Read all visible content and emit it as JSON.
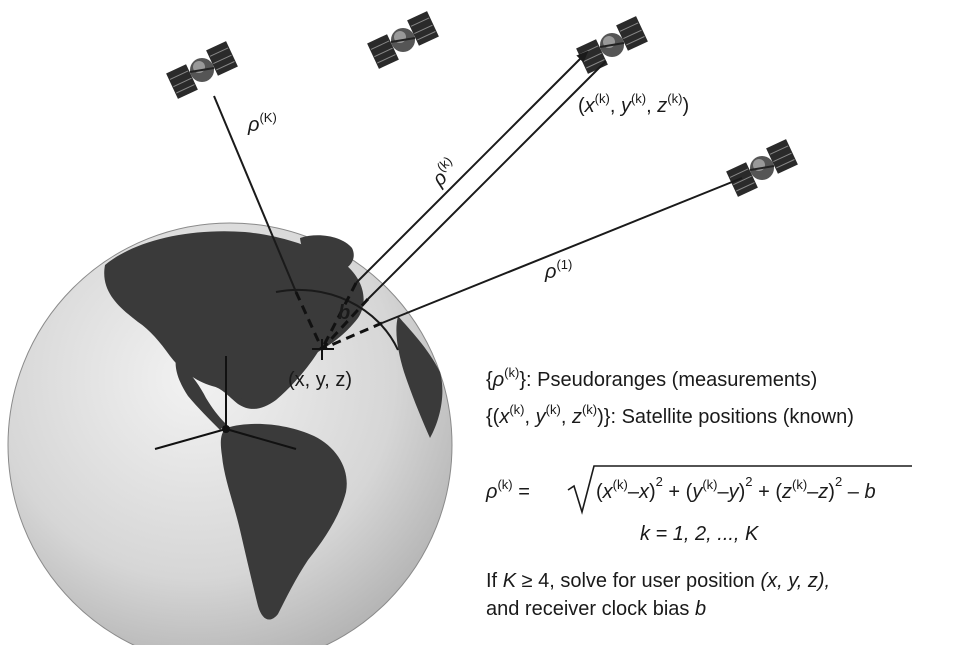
{
  "labels": {
    "rho_big_k": {
      "rho": "ρ",
      "sup": "(K)"
    },
    "rho_k": {
      "rho": "ρ",
      "sup": "(k)"
    },
    "rho_1": {
      "rho": "ρ",
      "sup": "(1)"
    },
    "bias": "b",
    "user_position": "(x, y, z)",
    "sat_position": {
      "x": "x",
      "y": "y",
      "z": "z",
      "sup": "(k)"
    }
  },
  "legend": {
    "pseudoranges": {
      "sup": "(k)",
      "text": "Pseudoranges (measurements)"
    },
    "satellites": {
      "sup": "(k)",
      "text": "Satellite positions (known)"
    }
  },
  "equation": {
    "lhs_sup": "(k)",
    "index_line": "k = 1, 2, ..., K"
  },
  "note": {
    "line1_prefix": "If",
    "line1_k": "K",
    "line1_rest": "≥ 4, solve for user position",
    "line1_xyz": "(x, y, z),",
    "line2_text": "and receiver clock bias",
    "line2_b": "b"
  },
  "colors": {
    "ocean": "#d9d9d9",
    "land": "#3a3a3a",
    "lines": "#1a1a1a"
  }
}
